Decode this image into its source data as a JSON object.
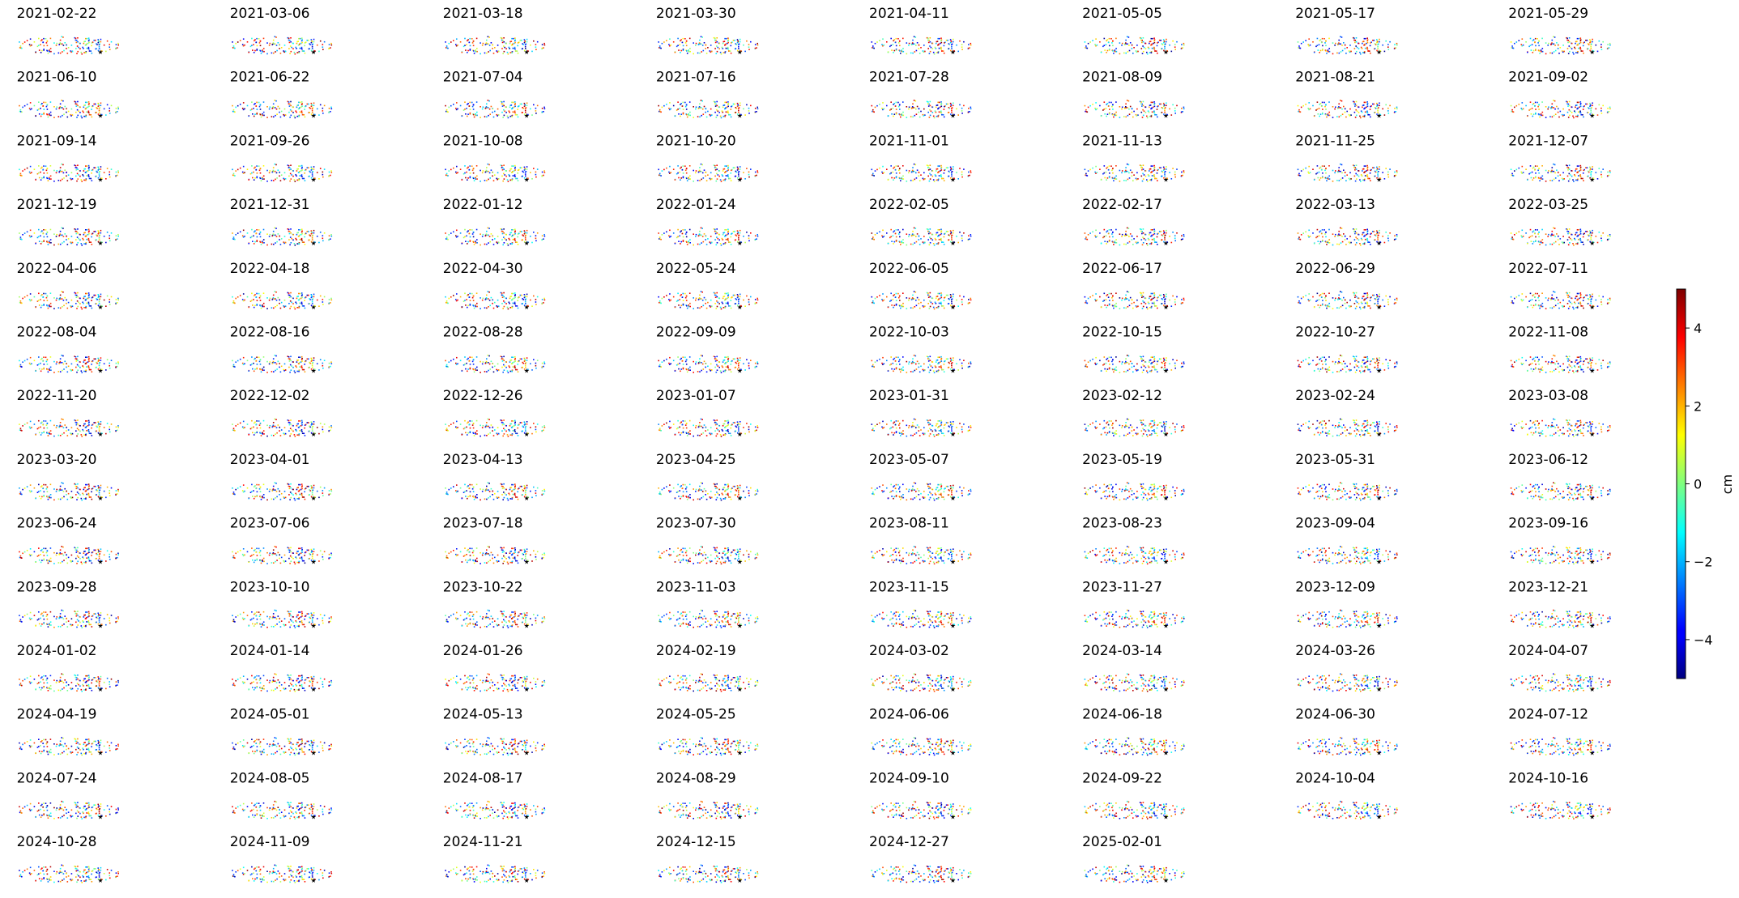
{
  "chart_data": {
    "type": "scatter",
    "description_kind": "small-multiples displacement maps",
    "grid": false,
    "axes_visible": false,
    "colormap": "jet",
    "panel_dates": [
      "2021-02-22",
      "2021-03-06",
      "2021-03-18",
      "2021-03-30",
      "2021-04-11",
      "2021-05-05",
      "2021-05-17",
      "2021-05-29",
      "2021-06-10",
      "2021-06-22",
      "2021-07-04",
      "2021-07-16",
      "2021-07-28",
      "2021-08-09",
      "2021-08-21",
      "2021-09-02",
      "2021-09-14",
      "2021-09-26",
      "2021-10-08",
      "2021-10-20",
      "2021-11-01",
      "2021-11-13",
      "2021-11-25",
      "2021-12-07",
      "2021-12-19",
      "2021-12-31",
      "2022-01-12",
      "2022-01-24",
      "2022-02-05",
      "2022-02-17",
      "2022-03-13",
      "2022-03-25",
      "2022-04-06",
      "2022-04-18",
      "2022-04-30",
      "2022-05-24",
      "2022-06-05",
      "2022-06-17",
      "2022-06-29",
      "2022-07-11",
      "2022-08-04",
      "2022-08-16",
      "2022-08-28",
      "2022-09-09",
      "2022-10-03",
      "2022-10-15",
      "2022-10-27",
      "2022-11-08",
      "2022-11-20",
      "2022-12-02",
      "2022-12-26",
      "2023-01-07",
      "2023-01-31",
      "2023-02-12",
      "2023-02-24",
      "2023-03-08",
      "2023-03-20",
      "2023-04-01",
      "2023-04-13",
      "2023-04-25",
      "2023-05-07",
      "2023-05-19",
      "2023-05-31",
      "2023-06-12",
      "2023-06-24",
      "2023-07-06",
      "2023-07-18",
      "2023-07-30",
      "2023-08-11",
      "2023-08-23",
      "2023-09-04",
      "2023-09-16",
      "2023-09-28",
      "2023-10-10",
      "2023-10-22",
      "2023-11-03",
      "2023-11-15",
      "2023-11-27",
      "2023-12-09",
      "2023-12-21",
      "2024-01-02",
      "2024-01-14",
      "2024-01-26",
      "2024-02-19",
      "2024-03-02",
      "2024-03-14",
      "2024-03-26",
      "2024-04-07",
      "2024-04-19",
      "2024-05-01",
      "2024-05-13",
      "2024-05-25",
      "2024-06-06",
      "2024-06-18",
      "2024-06-30",
      "2024-07-12",
      "2024-07-24",
      "2024-08-05",
      "2024-08-17",
      "2024-08-29",
      "2024-09-10",
      "2024-09-22",
      "2024-10-04",
      "2024-10-16",
      "2024-10-28",
      "2024-11-09",
      "2024-11-21",
      "2024-12-15",
      "2024-12-27",
      "2025-02-01"
    ],
    "colorbar": {
      "label": "cm",
      "range": [
        -5,
        5
      ],
      "ticks": [
        -4,
        -2,
        0,
        2,
        4
      ],
      "tick_labels": [
        "−4",
        "−2",
        "0",
        "2",
        "4"
      ]
    }
  }
}
